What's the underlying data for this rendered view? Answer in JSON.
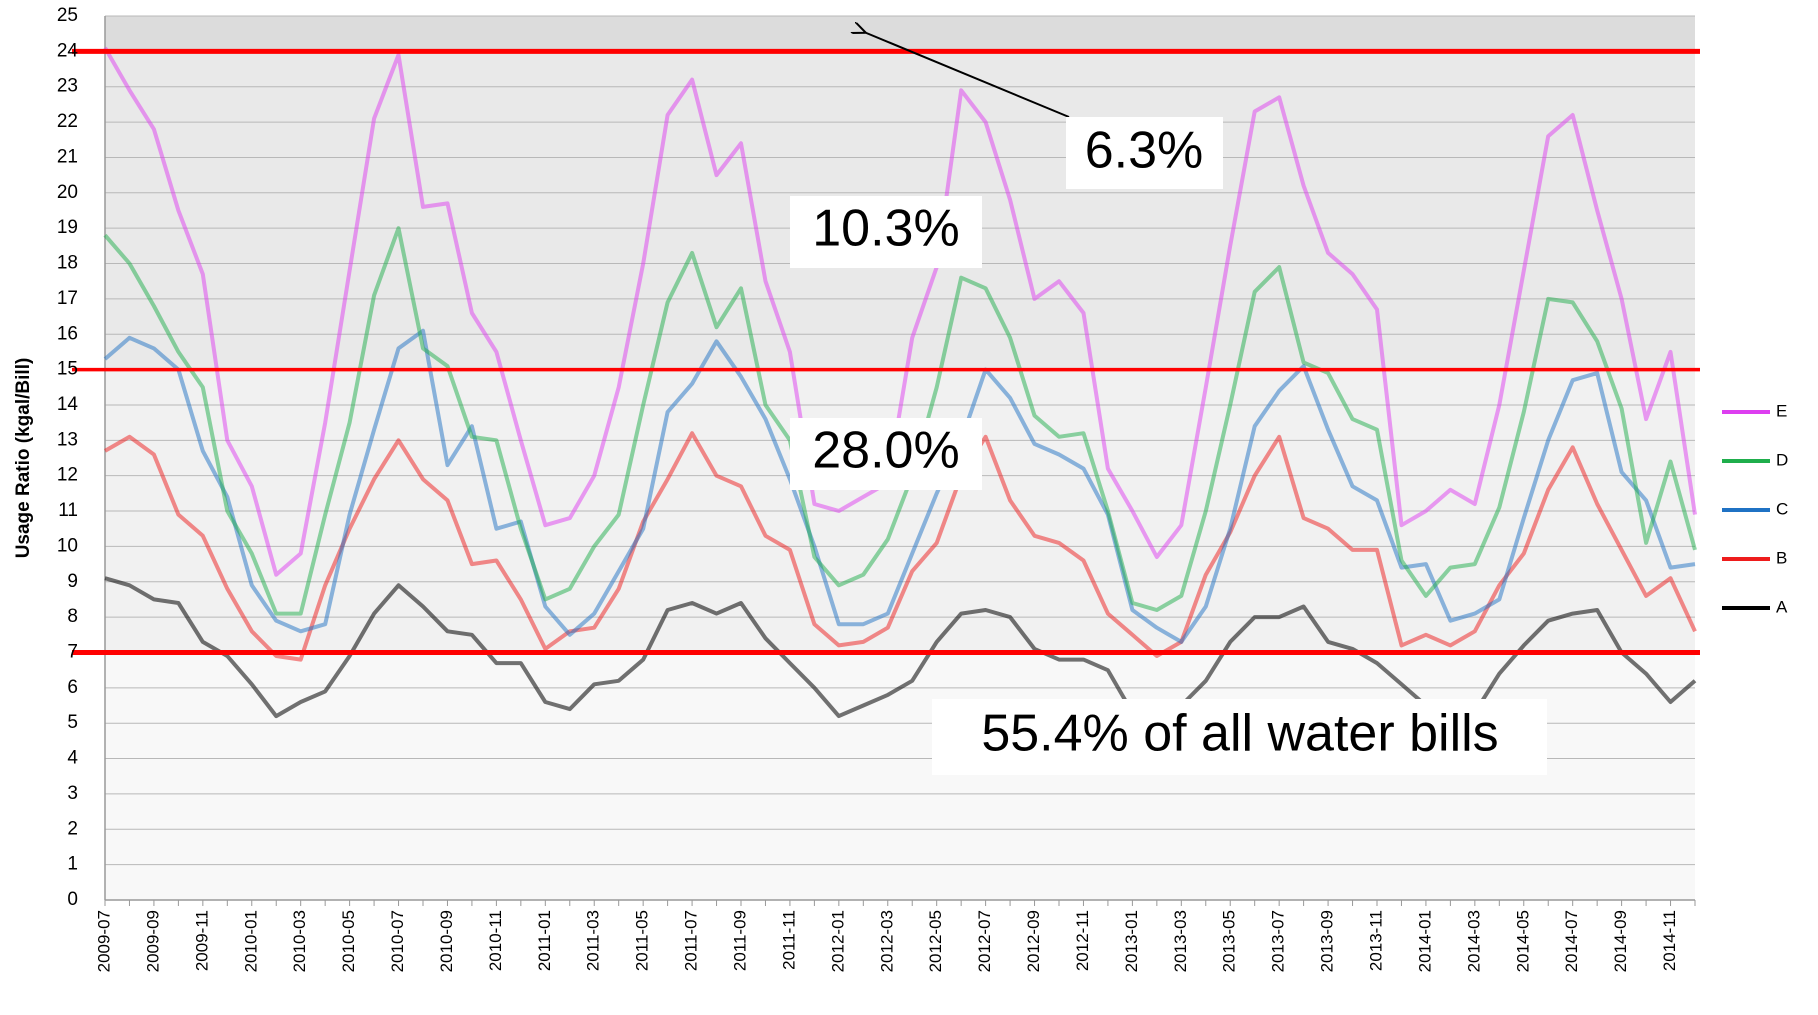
{
  "chart_data": {
    "type": "line",
    "y_label": "Usage Ratio (kgal/Bill)",
    "ylim": [
      0,
      25
    ],
    "yticks": [
      0,
      1,
      2,
      3,
      4,
      5,
      6,
      7,
      8,
      9,
      10,
      11,
      12,
      13,
      14,
      15,
      16,
      17,
      18,
      19,
      20,
      21,
      22,
      23,
      24,
      25
    ],
    "grid": true,
    "legend": "right",
    "reference_lines": [
      24,
      15,
      7
    ],
    "reference_color": "#ff0000",
    "annotations": [
      "6.3%",
      "10.3%",
      "28.0%",
      "55.4% of all water bills"
    ],
    "categories": [
      "2009-07",
      null,
      "2009-09",
      null,
      "2009-11",
      null,
      "2010-01",
      null,
      "2010-03",
      null,
      "2010-05",
      null,
      "2010-07",
      null,
      "2010-09",
      null,
      "2010-11",
      null,
      "2011-01",
      null,
      "2011-03",
      null,
      "2011-05",
      null,
      "2011-07",
      null,
      "2011-09",
      null,
      "2011-11",
      null,
      "2012-01",
      null,
      "2012-03",
      null,
      "2012-05",
      null,
      "2012-07",
      null,
      "2012-09",
      null,
      "2012-11",
      null,
      "2013-01",
      null,
      "2013-03",
      null,
      "2013-05",
      null,
      "2013-07",
      null,
      "2013-09",
      null,
      "2013-11",
      null,
      "2014-01",
      null,
      "2014-03",
      null,
      "2014-05",
      null,
      "2014-07",
      null,
      "2014-09",
      null,
      "2014-11",
      null
    ],
    "series": [
      {
        "name": "E",
        "color": "#dd3ef0",
        "values": [
          24.1,
          22.9,
          21.8,
          19.5,
          17.7,
          13.0,
          11.7,
          9.2,
          9.8,
          13.5,
          17.8,
          22.1,
          23.9,
          19.6,
          19.7,
          16.6,
          15.5,
          13.0,
          10.6,
          10.8,
          12.0,
          14.5,
          18.0,
          22.2,
          23.2,
          20.5,
          21.4,
          17.5,
          15.5,
          11.2,
          11.0,
          11.4,
          11.8,
          15.9,
          17.9,
          22.9,
          22.0,
          19.8,
          17.0,
          17.5,
          16.6,
          12.2,
          11.0,
          9.7,
          10.6,
          14.5,
          18.5,
          22.3,
          22.7,
          20.2,
          18.3,
          17.7,
          16.7,
          10.6,
          11.0,
          11.6,
          11.2,
          14.0,
          17.8,
          21.6,
          22.2,
          19.5,
          17.0,
          13.6,
          15.5,
          10.9
        ]
      },
      {
        "name": "D",
        "color": "#1fae4c",
        "values": [
          18.8,
          18.0,
          16.8,
          15.5,
          14.5,
          11.0,
          9.8,
          8.1,
          8.1,
          10.9,
          13.5,
          17.1,
          19.0,
          15.6,
          15.1,
          13.1,
          13.0,
          10.5,
          8.5,
          8.8,
          10.0,
          10.9,
          14.0,
          16.9,
          18.3,
          16.2,
          17.3,
          14.0,
          13.0,
          9.7,
          8.9,
          9.2,
          10.2,
          12.0,
          14.5,
          17.6,
          17.3,
          15.9,
          13.7,
          13.1,
          13.2,
          11.0,
          8.4,
          8.2,
          8.6,
          11.0,
          14.0,
          17.2,
          17.9,
          15.2,
          14.9,
          13.6,
          13.3,
          9.6,
          8.6,
          9.4,
          9.5,
          11.1,
          13.8,
          17.0,
          16.9,
          15.8,
          13.9,
          10.1,
          12.4,
          9.9
        ]
      },
      {
        "name": "C",
        "color": "#1f72c4",
        "values": [
          15.3,
          15.9,
          15.6,
          15.0,
          12.7,
          11.4,
          8.9,
          7.9,
          7.6,
          7.8,
          10.9,
          13.3,
          15.6,
          16.1,
          12.3,
          13.4,
          10.5,
          10.7,
          8.3,
          7.5,
          8.1,
          9.3,
          10.5,
          13.8,
          14.6,
          15.8,
          14.8,
          13.6,
          11.9,
          10.0,
          7.8,
          7.8,
          8.1,
          9.8,
          11.5,
          13.0,
          15.0,
          14.2,
          12.9,
          12.6,
          12.2,
          10.9,
          8.2,
          7.7,
          7.3,
          8.3,
          10.5,
          13.4,
          14.4,
          15.1,
          13.3,
          11.7,
          11.3,
          9.4,
          9.5,
          7.9,
          8.1,
          8.5,
          10.8,
          13.0,
          14.7,
          14.9,
          12.1,
          11.3,
          9.4,
          9.5
        ]
      },
      {
        "name": "B",
        "color": "#ee1c1c",
        "values": [
          12.7,
          13.1,
          12.6,
          10.9,
          10.3,
          8.8,
          7.6,
          6.9,
          6.8,
          8.9,
          10.5,
          11.9,
          13.0,
          11.9,
          11.3,
          9.5,
          9.6,
          8.5,
          7.1,
          7.6,
          7.7,
          8.8,
          10.7,
          11.9,
          13.2,
          12.0,
          11.7,
          10.3,
          9.9,
          7.8,
          7.2,
          7.3,
          7.7,
          9.3,
          10.1,
          12.0,
          13.1,
          11.3,
          10.3,
          10.1,
          9.6,
          8.1,
          7.5,
          6.9,
          7.3,
          9.2,
          10.4,
          12.0,
          13.1,
          10.8,
          10.5,
          9.9,
          9.9,
          7.2,
          7.5,
          7.2,
          7.6,
          8.9,
          9.8,
          11.6,
          12.8,
          11.2,
          9.9,
          8.6,
          9.1,
          7.6
        ]
      },
      {
        "name": "A",
        "color": "#000000",
        "values": [
          9.1,
          8.9,
          8.5,
          8.4,
          7.3,
          6.9,
          6.1,
          5.2,
          5.6,
          5.9,
          6.9,
          8.1,
          8.9,
          8.3,
          7.6,
          7.5,
          6.7,
          6.7,
          5.6,
          5.4,
          6.1,
          6.2,
          6.8,
          8.2,
          8.4,
          8.1,
          8.4,
          7.4,
          6.7,
          6.0,
          5.2,
          5.5,
          5.8,
          6.2,
          7.3,
          8.1,
          8.2,
          8.0,
          7.1,
          6.8,
          6.8,
          6.5,
          5.3,
          5.0,
          5.5,
          6.2,
          7.3,
          8.0,
          8.0,
          8.3,
          7.3,
          7.1,
          6.7,
          6.1,
          5.5,
          5.0,
          5.3,
          6.4,
          7.2,
          7.9,
          8.1,
          8.2,
          7.0,
          6.4,
          5.6,
          6.2
        ]
      }
    ]
  }
}
